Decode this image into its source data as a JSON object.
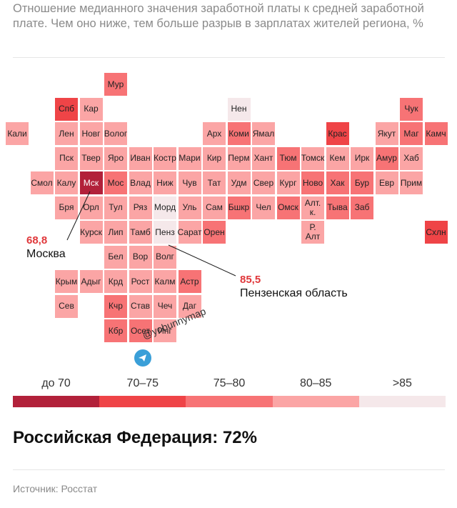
{
  "header": {
    "subtitle": "Отношение медианного значения заработной платы к средней заработной плате. Чем оно ниже, тем больше разрыв в зарплатах жителей региона, %"
  },
  "chart_data": {
    "type": "heatmap",
    "title": "",
    "categories": [
      "до 70",
      "70–75",
      "75–80",
      "80–85",
      ">85"
    ],
    "colors": [
      "#b2213a",
      "#ef4447",
      "#f77375",
      "#fba5a5",
      "#f5e8ea"
    ],
    "cells": [
      {
        "label": "Мур",
        "col": 4,
        "row": 0,
        "bin": 2
      },
      {
        "label": "Спб",
        "col": 2,
        "row": 1,
        "bin": 1
      },
      {
        "label": "Кар",
        "col": 3,
        "row": 1,
        "bin": 3
      },
      {
        "label": "Нен",
        "col": 9,
        "row": 1,
        "bin": 4
      },
      {
        "label": "Чук",
        "col": 16,
        "row": 1,
        "bin": 2
      },
      {
        "label": "Кали",
        "col": 0,
        "row": 2,
        "bin": 3
      },
      {
        "label": "Лен",
        "col": 2,
        "row": 2,
        "bin": 3
      },
      {
        "label": "Новг",
        "col": 3,
        "row": 2,
        "bin": 3
      },
      {
        "label": "Волог",
        "col": 4,
        "row": 2,
        "bin": 3
      },
      {
        "label": "Арх",
        "col": 8,
        "row": 2,
        "bin": 3
      },
      {
        "label": "Коми",
        "col": 9,
        "row": 2,
        "bin": 2
      },
      {
        "label": "Ямал",
        "col": 10,
        "row": 2,
        "bin": 3
      },
      {
        "label": "Крас",
        "col": 13,
        "row": 2,
        "bin": 1
      },
      {
        "label": "Якут",
        "col": 15,
        "row": 2,
        "bin": 3
      },
      {
        "label": "Маг",
        "col": 16,
        "row": 2,
        "bin": 2
      },
      {
        "label": "Камч",
        "col": 17,
        "row": 2,
        "bin": 2
      },
      {
        "label": "Пск",
        "col": 2,
        "row": 3,
        "bin": 3
      },
      {
        "label": "Твер",
        "col": 3,
        "row": 3,
        "bin": 3
      },
      {
        "label": "Яро",
        "col": 4,
        "row": 3,
        "bin": 3
      },
      {
        "label": "Иван",
        "col": 5,
        "row": 3,
        "bin": 3
      },
      {
        "label": "Костр",
        "col": 6,
        "row": 3,
        "bin": 3
      },
      {
        "label": "Мари",
        "col": 7,
        "row": 3,
        "bin": 3
      },
      {
        "label": "Кир",
        "col": 8,
        "row": 3,
        "bin": 3
      },
      {
        "label": "Перм",
        "col": 9,
        "row": 3,
        "bin": 3
      },
      {
        "label": "Хант",
        "col": 10,
        "row": 3,
        "bin": 3
      },
      {
        "label": "Тюм",
        "col": 11,
        "row": 3,
        "bin": 2
      },
      {
        "label": "Томск",
        "col": 12,
        "row": 3,
        "bin": 3
      },
      {
        "label": "Кем",
        "col": 13,
        "row": 3,
        "bin": 3
      },
      {
        "label": "Ирк",
        "col": 14,
        "row": 3,
        "bin": 3
      },
      {
        "label": "Амур",
        "col": 15,
        "row": 3,
        "bin": 2
      },
      {
        "label": "Хаб",
        "col": 16,
        "row": 3,
        "bin": 3
      },
      {
        "label": "Смол",
        "col": 1,
        "row": 4,
        "bin": 3
      },
      {
        "label": "Калу",
        "col": 2,
        "row": 4,
        "bin": 3
      },
      {
        "label": "Мск",
        "col": 3,
        "row": 4,
        "bin": 0
      },
      {
        "label": "Мос",
        "col": 4,
        "row": 4,
        "bin": 2
      },
      {
        "label": "Влад",
        "col": 5,
        "row": 4,
        "bin": 3
      },
      {
        "label": "Ниж",
        "col": 6,
        "row": 4,
        "bin": 3
      },
      {
        "label": "Чув",
        "col": 7,
        "row": 4,
        "bin": 3
      },
      {
        "label": "Тат",
        "col": 8,
        "row": 4,
        "bin": 3
      },
      {
        "label": "Удм",
        "col": 9,
        "row": 4,
        "bin": 3
      },
      {
        "label": "Свер",
        "col": 10,
        "row": 4,
        "bin": 3
      },
      {
        "label": "Кург",
        "col": 11,
        "row": 4,
        "bin": 3
      },
      {
        "label": "Ново",
        "col": 12,
        "row": 4,
        "bin": 2
      },
      {
        "label": "Хак",
        "col": 13,
        "row": 4,
        "bin": 2
      },
      {
        "label": "Бур",
        "col": 14,
        "row": 4,
        "bin": 2
      },
      {
        "label": "Евр",
        "col": 15,
        "row": 4,
        "bin": 3
      },
      {
        "label": "Прим",
        "col": 16,
        "row": 4,
        "bin": 3
      },
      {
        "label": "Бря",
        "col": 2,
        "row": 5,
        "bin": 3
      },
      {
        "label": "Орл",
        "col": 3,
        "row": 5,
        "bin": 3
      },
      {
        "label": "Тул",
        "col": 4,
        "row": 5,
        "bin": 3
      },
      {
        "label": "Ряз",
        "col": 5,
        "row": 5,
        "bin": 3
      },
      {
        "label": "Морд",
        "col": 6,
        "row": 5,
        "bin": 4
      },
      {
        "label": "Уль",
        "col": 7,
        "row": 5,
        "bin": 3
      },
      {
        "label": "Сам",
        "col": 8,
        "row": 5,
        "bin": 3
      },
      {
        "label": "Бшкр",
        "col": 9,
        "row": 5,
        "bin": 2
      },
      {
        "label": "Чел",
        "col": 10,
        "row": 5,
        "bin": 3
      },
      {
        "label": "Омск",
        "col": 11,
        "row": 5,
        "bin": 2
      },
      {
        "label": "Алт. к.",
        "col": 12,
        "row": 5,
        "bin": 3
      },
      {
        "label": "Тыва",
        "col": 13,
        "row": 5,
        "bin": 2
      },
      {
        "label": "Заб",
        "col": 14,
        "row": 5,
        "bin": 2
      },
      {
        "label": "Курск",
        "col": 3,
        "row": 6,
        "bin": 3
      },
      {
        "label": "Лип",
        "col": 4,
        "row": 6,
        "bin": 3
      },
      {
        "label": "Тамб",
        "col": 5,
        "row": 6,
        "bin": 3
      },
      {
        "label": "Пенз",
        "col": 6,
        "row": 6,
        "bin": 4
      },
      {
        "label": "Сарат",
        "col": 7,
        "row": 6,
        "bin": 3
      },
      {
        "label": "Орен",
        "col": 8,
        "row": 6,
        "bin": 2
      },
      {
        "label": "Р. Алт",
        "col": 12,
        "row": 6,
        "bin": 3
      },
      {
        "label": "Схлн",
        "col": 17,
        "row": 6,
        "bin": 1
      },
      {
        "label": "Бел",
        "col": 4,
        "row": 7,
        "bin": 3
      },
      {
        "label": "Вор",
        "col": 5,
        "row": 7,
        "bin": 3
      },
      {
        "label": "Волг",
        "col": 6,
        "row": 7,
        "bin": 3
      },
      {
        "label": "Крым",
        "col": 2,
        "row": 8,
        "bin": 3
      },
      {
        "label": "Адыг",
        "col": 3,
        "row": 8,
        "bin": 3
      },
      {
        "label": "Крд",
        "col": 4,
        "row": 8,
        "bin": 3
      },
      {
        "label": "Рост",
        "col": 5,
        "row": 8,
        "bin": 3
      },
      {
        "label": "Калм",
        "col": 6,
        "row": 8,
        "bin": 3
      },
      {
        "label": "Астр",
        "col": 7,
        "row": 8,
        "bin": 2
      },
      {
        "label": "Сев",
        "col": 2,
        "row": 9,
        "bin": 3
      },
      {
        "label": "Кчр",
        "col": 4,
        "row": 9,
        "bin": 2
      },
      {
        "label": "Став",
        "col": 5,
        "row": 9,
        "bin": 3
      },
      {
        "label": "Чеч",
        "col": 6,
        "row": 9,
        "bin": 3
      },
      {
        "label": "Даг",
        "col": 7,
        "row": 9,
        "bin": 3
      },
      {
        "label": "Кбр",
        "col": 4,
        "row": 10,
        "bin": 2
      },
      {
        "label": "Осет",
        "col": 5,
        "row": 10,
        "bin": 2
      },
      {
        "label": "Инг",
        "col": 6,
        "row": 10,
        "bin": 3
      }
    ],
    "annotations": [
      {
        "value": "68,8",
        "name": "Москва"
      },
      {
        "value": "85,5",
        "name": "Пензенская область"
      }
    ]
  },
  "watermark": "@yobunnymap",
  "total": "Российская Федерация: 72%",
  "source": "Источник: Росстат"
}
